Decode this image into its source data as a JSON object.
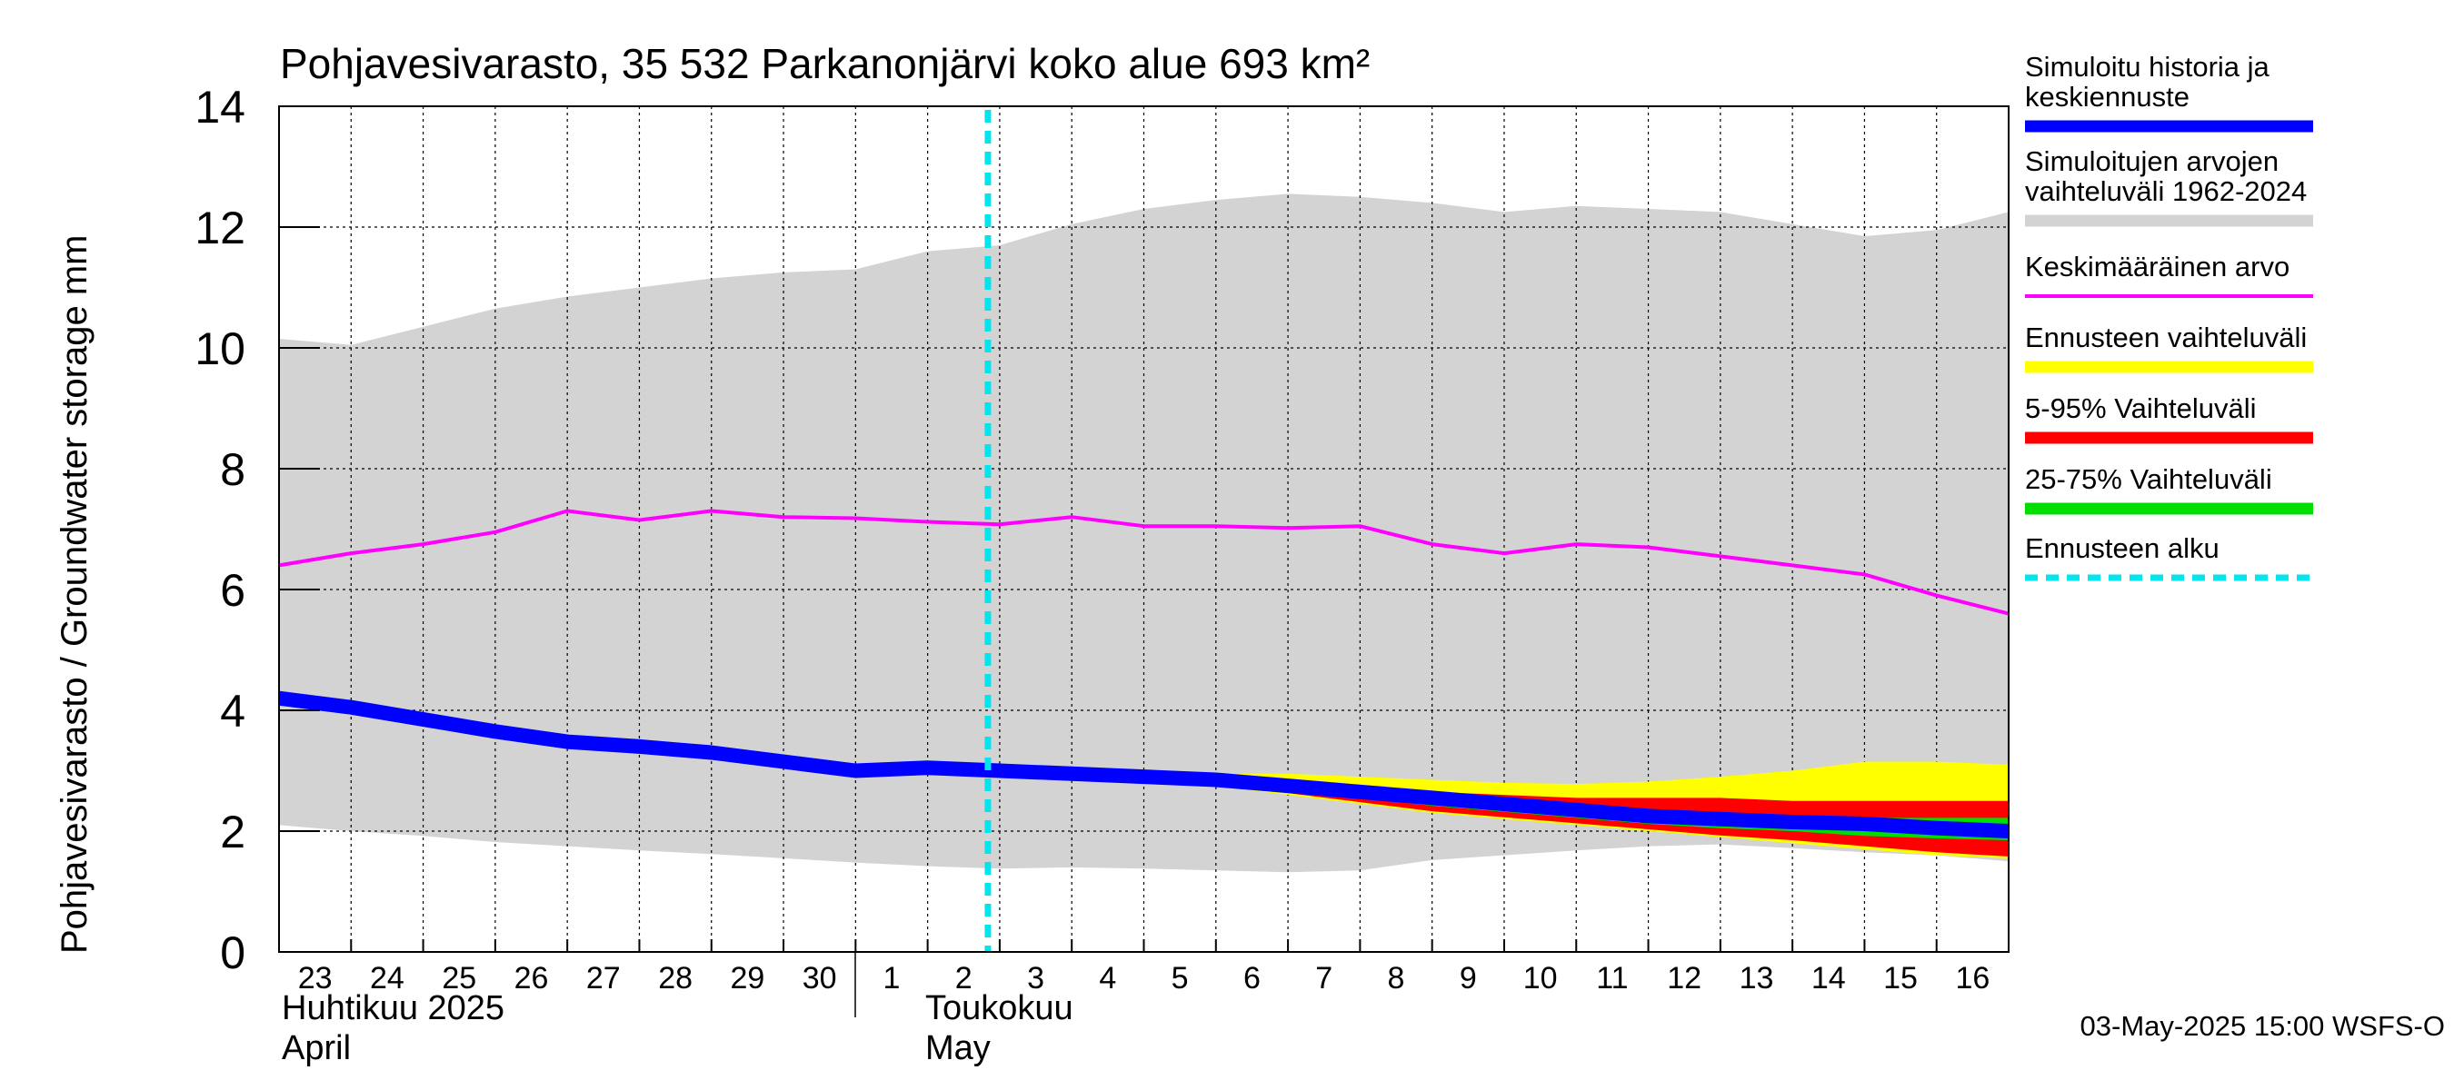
{
  "chart_data": {
    "type": "area",
    "title": "Pohjavesivarasto, 35 532 Parkanonjärvi koko alue 693 km²",
    "ylabel": "Pohjavesivarasto / Groundwater storage   mm",
    "ylim": [
      0,
      14
    ],
    "yticks": [
      "0",
      "2",
      "4",
      "6",
      "8",
      "10",
      "12",
      "14"
    ],
    "grid": true,
    "x_range_days": [
      0,
      24
    ],
    "xtick_labels": [
      "23",
      "24",
      "25",
      "26",
      "27",
      "28",
      "29",
      "30",
      "1",
      "2",
      "3",
      "4",
      "5",
      "6",
      "7",
      "8",
      "9",
      "10",
      "11",
      "12",
      "13",
      "14",
      "15",
      "16"
    ],
    "month_labels": [
      {
        "line1": "Huhtikuu  2025",
        "line2": "April",
        "day": 0
      },
      {
        "line1": "Toukokuu",
        "line2": "May",
        "day": 9
      }
    ],
    "month_boundary_day": 8,
    "forecast_start_day": 10,
    "footer": "03-May-2025 15:00 WSFS-O",
    "colors": {
      "history": "#0000ff",
      "range": "#d3d3d3",
      "mean": "#ff00ff",
      "forecast_range": "#ffff00",
      "p5_95": "#ff0000",
      "p25_75": "#00dd00",
      "forecast_start": "#00e5ee"
    },
    "legend": [
      {
        "key": "history",
        "lines": [
          "Simuloitu historia ja",
          "keskiennuste"
        ],
        "style": "thick"
      },
      {
        "key": "range",
        "lines": [
          "Simuloitujen arvojen",
          "vaihteluväli 1962-2024"
        ],
        "style": "thick"
      },
      {
        "key": "mean",
        "lines": [
          "Keskimääräinen arvo"
        ],
        "style": "thin"
      },
      {
        "key": "forecast_range",
        "lines": [
          "Ennusteen vaihteluväli"
        ],
        "style": "thick"
      },
      {
        "key": "p5_95",
        "lines": [
          "5-95% Vaihteluväli"
        ],
        "style": "thick"
      },
      {
        "key": "p25_75",
        "lines": [
          "25-75% Vaihteluväli"
        ],
        "style": "thick"
      },
      {
        "key": "forecast_start",
        "lines": [
          "Ennusteen alku"
        ],
        "style": "dashed"
      }
    ],
    "series": {
      "range_max": {
        "x": [
          0,
          1,
          2,
          3,
          4,
          5,
          6,
          7,
          8,
          9,
          10,
          11,
          12,
          13,
          14,
          15,
          16,
          17,
          18,
          19,
          20,
          21,
          22,
          23,
          24
        ],
        "y": [
          10.15,
          10.05,
          10.35,
          10.65,
          10.85,
          11.0,
          11.15,
          11.25,
          11.3,
          11.6,
          11.7,
          12.05,
          12.3,
          12.45,
          12.55,
          12.5,
          12.4,
          12.25,
          12.35,
          12.3,
          12.25,
          12.05,
          11.85,
          11.95,
          12.25
        ]
      },
      "range_min": {
        "x": [
          0,
          1,
          2,
          3,
          4,
          5,
          6,
          7,
          8,
          9,
          10,
          11,
          12,
          13,
          14,
          15,
          16,
          17,
          18,
          19,
          20,
          21,
          22,
          23,
          24
        ],
        "y": [
          2.1,
          2.0,
          1.92,
          1.82,
          1.75,
          1.68,
          1.62,
          1.55,
          1.48,
          1.42,
          1.38,
          1.4,
          1.38,
          1.35,
          1.32,
          1.35,
          1.52,
          1.6,
          1.68,
          1.75,
          1.78,
          1.72,
          1.65,
          1.6,
          1.5
        ]
      },
      "mean": {
        "x": [
          0,
          1,
          2,
          3,
          4,
          5,
          6,
          7,
          8,
          9,
          10,
          11,
          12,
          13,
          14,
          15,
          16,
          17,
          18,
          19,
          20,
          21,
          22,
          23,
          24
        ],
        "y": [
          6.4,
          6.6,
          6.75,
          6.95,
          7.3,
          7.15,
          7.3,
          7.2,
          7.18,
          7.12,
          7.08,
          7.2,
          7.05,
          7.05,
          7.02,
          7.05,
          6.75,
          6.6,
          6.75,
          6.7,
          6.55,
          6.4,
          6.25,
          5.9,
          5.6
        ]
      },
      "history": {
        "x": [
          0,
          1,
          2,
          3,
          4,
          5,
          6,
          7,
          8,
          9,
          10,
          11,
          12,
          13,
          14,
          15,
          16,
          17,
          18,
          19,
          20,
          21,
          22,
          23,
          24
        ],
        "y": [
          4.2,
          4.05,
          3.85,
          3.65,
          3.48,
          3.4,
          3.3,
          3.15,
          3.0,
          3.05,
          3.0,
          2.95,
          2.9,
          2.85,
          2.75,
          2.65,
          2.55,
          2.45,
          2.35,
          2.25,
          2.2,
          2.15,
          2.12,
          2.05,
          2.0
        ]
      },
      "forecast_range_max": {
        "x": [
          12,
          13,
          14,
          15,
          16,
          17,
          18,
          19,
          20,
          21,
          22,
          23,
          24
        ],
        "y": [
          2.92,
          2.95,
          2.95,
          2.9,
          2.85,
          2.8,
          2.78,
          2.82,
          2.9,
          3.0,
          3.15,
          3.15,
          3.1
        ]
      },
      "forecast_range_min": {
        "x": [
          12,
          13,
          14,
          15,
          16,
          17,
          18,
          19,
          20,
          21,
          22,
          23,
          24
        ],
        "y": [
          2.88,
          2.75,
          2.6,
          2.45,
          2.3,
          2.2,
          2.1,
          2.0,
          1.9,
          1.8,
          1.7,
          1.6,
          1.55
        ]
      },
      "p95": {
        "x": [
          12,
          13,
          14,
          15,
          16,
          17,
          18,
          19,
          20,
          21,
          22,
          23,
          24
        ],
        "y": [
          2.9,
          2.85,
          2.8,
          2.72,
          2.65,
          2.6,
          2.55,
          2.55,
          2.55,
          2.5,
          2.5,
          2.5,
          2.5
        ]
      },
      "p5": {
        "x": [
          12,
          13,
          14,
          15,
          16,
          17,
          18,
          19,
          20,
          21,
          22,
          23,
          24
        ],
        "y": [
          2.88,
          2.77,
          2.63,
          2.48,
          2.33,
          2.23,
          2.13,
          2.03,
          1.93,
          1.85,
          1.75,
          1.65,
          1.58
        ]
      },
      "p75": {
        "x": [
          12,
          13,
          14,
          15,
          16,
          17,
          18,
          19,
          20,
          21,
          22,
          23,
          24
        ],
        "y": [
          2.9,
          2.83,
          2.72,
          2.6,
          2.5,
          2.42,
          2.35,
          2.3,
          2.28,
          2.25,
          2.22,
          2.22,
          2.22
        ]
      },
      "p25": {
        "x": [
          12,
          13,
          14,
          15,
          16,
          17,
          18,
          19,
          20,
          21,
          22,
          23,
          24
        ],
        "y": [
          2.89,
          2.8,
          2.68,
          2.55,
          2.42,
          2.32,
          2.22,
          2.12,
          2.05,
          2.0,
          1.92,
          1.88,
          1.85
        ]
      }
    }
  }
}
